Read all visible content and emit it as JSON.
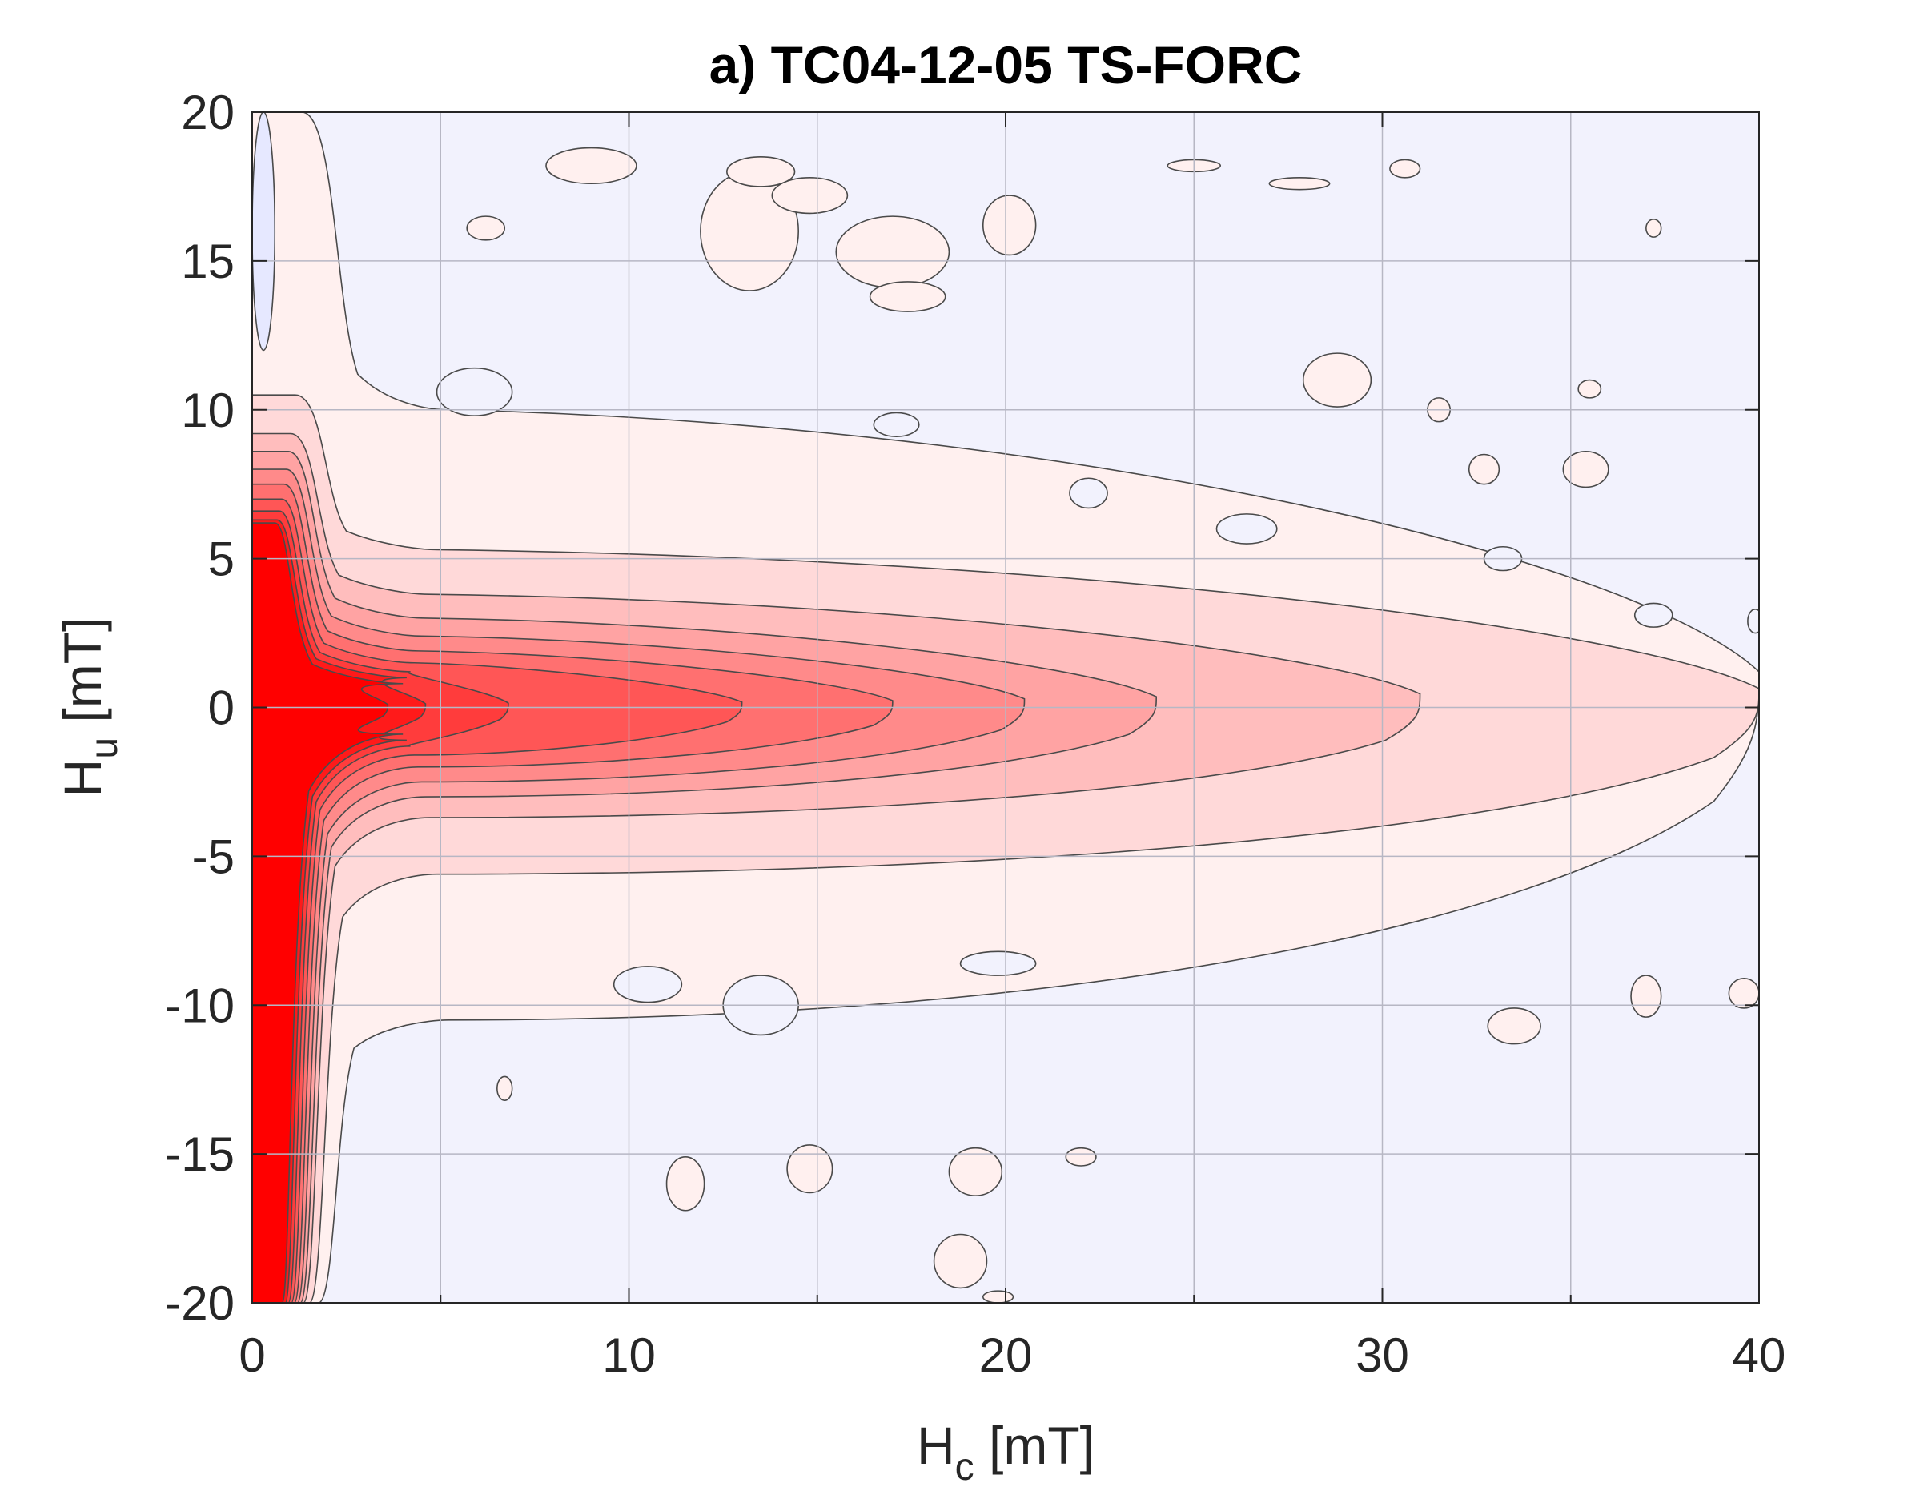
{
  "chart_data": {
    "type": "contour",
    "title": "a) TC04-12-05 TS-FORC",
    "xlabel": {
      "main": "H",
      "subscript": "c",
      "unit": " [mT]"
    },
    "ylabel": {
      "main": "H",
      "subscript": "u",
      "unit": " [mT]"
    },
    "xlim": [
      0,
      40
    ],
    "ylim": [
      -20,
      20
    ],
    "xticks": [
      0,
      10,
      20,
      30,
      40
    ],
    "xtick_labels": [
      "0",
      "10",
      "20",
      "30",
      "40"
    ],
    "yticks": [
      20,
      15,
      10,
      5,
      0,
      -5,
      -10,
      -15,
      -20
    ],
    "ytick_labels": [
      "20",
      "15",
      "10",
      "5",
      "0",
      "-5",
      "-10",
      "-15",
      "-20"
    ],
    "grid": true,
    "colormap": {
      "negative": "#e6e8ff",
      "background": "#f2f2fd",
      "positive_low": "#fff0ef",
      "positive_high": "#ff0000"
    },
    "contour_levels": [
      {
        "level": 1,
        "color": "#fff0ef",
        "hc_extent": 40.0,
        "hu_upper": 10.0,
        "hu_lower": -10.5,
        "ridge_top": 20.0,
        "ridge_bottom": -20.0,
        "ridge_hc": 2.2
      },
      {
        "level": 2,
        "color": "#ffd9d9",
        "hc_extent": 40.0,
        "hu_upper": 5.3,
        "hu_lower": -5.6,
        "ridge_top": 10.5,
        "ridge_bottom": -20.0,
        "ridge_hc": 1.9
      },
      {
        "level": 3,
        "color": "#ffbdbd",
        "hc_extent": 31.0,
        "hu_upper": 3.8,
        "hu_lower": -3.7,
        "ridge_top": 9.2,
        "ridge_bottom": -20.0,
        "ridge_hc": 1.7
      },
      {
        "level": 4,
        "color": "#ffa3a3",
        "hc_extent": 24.0,
        "hu_upper": 3.0,
        "hu_lower": -3.0,
        "ridge_top": 8.6,
        "ridge_bottom": -20.0,
        "ridge_hc": 1.6
      },
      {
        "level": 5,
        "color": "#ff8a8a",
        "hc_extent": 20.5,
        "hu_upper": 2.4,
        "hu_lower": -2.5,
        "ridge_top": 8.0,
        "ridge_bottom": -20.0,
        "ridge_hc": 1.5
      },
      {
        "level": 6,
        "color": "#ff7070",
        "hc_extent": 17.0,
        "hu_upper": 1.9,
        "hu_lower": -2.0,
        "ridge_top": 7.5,
        "ridge_bottom": -20.0,
        "ridge_hc": 1.4
      },
      {
        "level": 7,
        "color": "#ff5656",
        "hc_extent": 13.0,
        "hu_upper": 1.5,
        "hu_lower": -1.6,
        "ridge_top": 7.0,
        "ridge_bottom": -20.0,
        "ridge_hc": 1.3
      },
      {
        "level": 8,
        "color": "#ff3c3c",
        "hc_extent": 6.8,
        "hu_upper": 1.2,
        "hu_lower": -1.3,
        "ridge_top": 6.6,
        "ridge_bottom": -20.0,
        "ridge_hc": 1.2
      },
      {
        "level": 9,
        "color": "#ff1a1a",
        "hc_extent": 4.6,
        "hu_upper": 1.0,
        "hu_lower": -1.1,
        "ridge_top": 6.3,
        "ridge_bottom": -20.0,
        "ridge_hc": 1.1
      },
      {
        "level": 10,
        "color": "#ff0000",
        "hc_extent": 3.6,
        "hu_upper": 0.8,
        "hu_lower": -0.9,
        "ridge_top": 6.2,
        "ridge_bottom": -20.0,
        "ridge_hc": 1.0
      }
    ],
    "positive_islands": [
      {
        "hc": 9.0,
        "hu": 18.2,
        "rx": 1.2,
        "ry": 0.6
      },
      {
        "hc": 13.2,
        "hu": 16.0,
        "rx": 1.3,
        "ry": 2.0
      },
      {
        "hc": 13.5,
        "hu": 18.0,
        "rx": 0.9,
        "ry": 0.5
      },
      {
        "hc": 17.0,
        "hu": 15.3,
        "rx": 1.5,
        "ry": 1.2
      },
      {
        "hc": 14.8,
        "hu": 17.2,
        "rx": 1.0,
        "ry": 0.6
      },
      {
        "hc": 20.1,
        "hu": 16.2,
        "rx": 0.7,
        "ry": 1.0
      },
      {
        "hc": 25.0,
        "hu": 18.2,
        "rx": 0.7,
        "ry": 0.2
      },
      {
        "hc": 27.8,
        "hu": 17.6,
        "rx": 0.8,
        "ry": 0.2
      },
      {
        "hc": 30.6,
        "hu": 18.1,
        "rx": 0.4,
        "ry": 0.3
      },
      {
        "hc": 6.2,
        "hu": 16.1,
        "rx": 0.5,
        "ry": 0.4
      },
      {
        "hc": 17.4,
        "hu": 13.8,
        "rx": 1.0,
        "ry": 0.5
      },
      {
        "hc": 28.8,
        "hu": 11.0,
        "rx": 0.9,
        "ry": 0.9
      },
      {
        "hc": 31.5,
        "hu": 10.0,
        "rx": 0.3,
        "ry": 0.4
      },
      {
        "hc": 32.7,
        "hu": 8.0,
        "rx": 0.4,
        "ry": 0.5
      },
      {
        "hc": 35.4,
        "hu": 8.0,
        "rx": 0.6,
        "ry": 0.6
      },
      {
        "hc": 35.5,
        "hu": 10.7,
        "rx": 0.3,
        "ry": 0.3
      },
      {
        "hc": 37.2,
        "hu": 16.1,
        "rx": 0.2,
        "ry": 0.3
      },
      {
        "hc": 37.0,
        "hu": -9.7,
        "rx": 0.4,
        "ry": 0.7
      },
      {
        "hc": 33.5,
        "hu": -10.7,
        "rx": 0.7,
        "ry": 0.6
      },
      {
        "hc": 19.2,
        "hu": -15.6,
        "rx": 0.7,
        "ry": 0.8
      },
      {
        "hc": 22.0,
        "hu": -15.1,
        "rx": 0.4,
        "ry": 0.3
      },
      {
        "hc": 18.8,
        "hu": -18.6,
        "rx": 0.7,
        "ry": 0.9
      },
      {
        "hc": 11.5,
        "hu": -16.0,
        "rx": 0.5,
        "ry": 0.9
      },
      {
        "hc": 14.8,
        "hu": -15.5,
        "rx": 0.6,
        "ry": 0.8
      },
      {
        "hc": 6.7,
        "hu": -12.8,
        "rx": 0.2,
        "ry": 0.4
      },
      {
        "hc": 19.8,
        "hu": -19.8,
        "rx": 0.4,
        "ry": 0.2
      },
      {
        "hc": 39.6,
        "hu": -9.6,
        "rx": 0.4,
        "ry": 0.5
      }
    ],
    "negative_islands": [
      {
        "hc": 10.5,
        "hu": -9.3,
        "rx": 0.9,
        "ry": 0.6
      },
      {
        "hc": 13.5,
        "hu": -10.0,
        "rx": 1.0,
        "ry": 1.0
      },
      {
        "hc": 17.1,
        "hu": 9.5,
        "rx": 0.6,
        "ry": 0.4
      },
      {
        "hc": 5.9,
        "hu": 10.6,
        "rx": 1.0,
        "ry": 0.8
      },
      {
        "hc": 19.8,
        "hu": -8.6,
        "rx": 1.0,
        "ry": 0.4
      },
      {
        "hc": 26.4,
        "hu": 6.0,
        "rx": 0.8,
        "ry": 0.5
      },
      {
        "hc": 33.2,
        "hu": 5.0,
        "rx": 0.5,
        "ry": 0.4
      },
      {
        "hc": 37.2,
        "hu": 3.1,
        "rx": 0.5,
        "ry": 0.4
      },
      {
        "hc": 22.2,
        "hu": 7.2,
        "rx": 0.5,
        "ry": 0.5
      },
      {
        "hc": 39.9,
        "hu": 2.9,
        "rx": 0.2,
        "ry": 0.4
      },
      {
        "hc": 0.3,
        "hu": 16.0,
        "rx": 0.3,
        "ry": 4.0
      }
    ]
  }
}
